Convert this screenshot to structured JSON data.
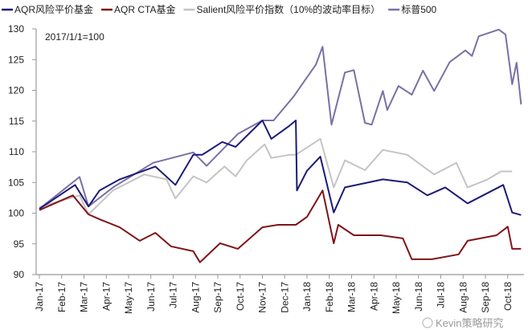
{
  "chart_data": {
    "type": "line",
    "title": "",
    "annotation": "2017/1/1=100",
    "xlabel": "",
    "ylabel": "",
    "ylim": [
      90,
      130
    ],
    "yticks": [
      90,
      95,
      100,
      105,
      110,
      115,
      120,
      125,
      130
    ],
    "x_unit": "months since Jan-17",
    "xticks": [
      "Jan-17",
      "Feb-17",
      "Mar-17",
      "Apr-17",
      "May-17",
      "Jun-17",
      "Jul-17",
      "Aug-17",
      "Sep-17",
      "Oct-17",
      "Nov-17",
      "Dec-17",
      "Jan-18",
      "Feb-18",
      "Mar-18",
      "Apr-18",
      "May-18",
      "Jun-18",
      "Jul-18",
      "Aug-18",
      "Sep-18",
      "Oct-18"
    ],
    "legend_position": "top",
    "grid": false,
    "series": [
      {
        "name": "AQR风险平价基金",
        "color": "#1b1b78",
        "points": [
          [
            0,
            100.7
          ],
          [
            1.6,
            104.6
          ],
          [
            2.2,
            101.1
          ],
          [
            2.7,
            103.7
          ],
          [
            3.6,
            105.5
          ],
          [
            5.2,
            107.6
          ],
          [
            6.1,
            104.6
          ],
          [
            6.9,
            109.5
          ],
          [
            7.3,
            109.5
          ],
          [
            8.2,
            111.6
          ],
          [
            8.8,
            110.8
          ],
          [
            10,
            115.1
          ],
          [
            10.4,
            112.1
          ],
          [
            11.2,
            114.2
          ],
          [
            11.5,
            115.1
          ],
          [
            11.55,
            103.7
          ],
          [
            12,
            106.9
          ],
          [
            12.6,
            109.2
          ],
          [
            13.2,
            100.1
          ],
          [
            13.7,
            104.2
          ],
          [
            15.4,
            105.5
          ],
          [
            16.5,
            105
          ],
          [
            17.4,
            102.9
          ],
          [
            18.2,
            104.2
          ],
          [
            19.2,
            101.6
          ],
          [
            20.8,
            104.6
          ],
          [
            21.2,
            100.1
          ],
          [
            21.6,
            99.7
          ]
        ]
      },
      {
        "name": "AQR CTA基金",
        "color": "#7f1518",
        "points": [
          [
            0,
            100.5
          ],
          [
            1.5,
            102.9
          ],
          [
            2.2,
            99.8
          ],
          [
            2.7,
            99
          ],
          [
            3.6,
            97.7
          ],
          [
            4.5,
            95.5
          ],
          [
            5.2,
            96.8
          ],
          [
            5.9,
            94.6
          ],
          [
            6.9,
            93.8
          ],
          [
            7.2,
            92
          ],
          [
            8.1,
            95.1
          ],
          [
            8.9,
            94.2
          ],
          [
            10,
            97.7
          ],
          [
            10.7,
            98.1
          ],
          [
            11.5,
            98.1
          ],
          [
            12,
            99.4
          ],
          [
            12.7,
            103.7
          ],
          [
            13.2,
            95.1
          ],
          [
            13.4,
            98.1
          ],
          [
            14.1,
            96.4
          ],
          [
            15.3,
            96.4
          ],
          [
            16.3,
            95.9
          ],
          [
            16.7,
            92.5
          ],
          [
            17.6,
            92.5
          ],
          [
            18.8,
            93.3
          ],
          [
            19.2,
            95.5
          ],
          [
            20.5,
            96.4
          ],
          [
            21,
            97.8
          ],
          [
            21.2,
            94.2
          ],
          [
            21.6,
            94.2
          ]
        ]
      },
      {
        "name": "Salient风险平价指数（10%的波动率目标）",
        "color": "#c4c4c4",
        "points": [
          [
            0,
            101
          ],
          [
            1.8,
            102.9
          ],
          [
            2.2,
            99.8
          ],
          [
            3.3,
            103.7
          ],
          [
            4.7,
            106.3
          ],
          [
            5.7,
            105.5
          ],
          [
            6.1,
            102.4
          ],
          [
            6.9,
            106
          ],
          [
            7.5,
            105
          ],
          [
            8.3,
            107.6
          ],
          [
            8.8,
            106
          ],
          [
            9.3,
            108.6
          ],
          [
            10.1,
            111.2
          ],
          [
            10.4,
            109
          ],
          [
            11.2,
            109.5
          ],
          [
            11.5,
            109.5
          ],
          [
            12.6,
            112.1
          ],
          [
            13.2,
            104.2
          ],
          [
            13.7,
            108.6
          ],
          [
            14.6,
            107
          ],
          [
            15.4,
            110.3
          ],
          [
            16.5,
            109.5
          ],
          [
            17.7,
            106.3
          ],
          [
            18.7,
            108.2
          ],
          [
            19.2,
            104.2
          ],
          [
            20.1,
            105.5
          ],
          [
            20.7,
            106.8
          ],
          [
            21.2,
            106.8
          ]
        ]
      },
      {
        "name": "标普500",
        "color": "#7b6fa6",
        "points": [
          [
            0,
            100.7
          ],
          [
            1.8,
            105.9
          ],
          [
            2.2,
            101.1
          ],
          [
            3.3,
            104.2
          ],
          [
            5.1,
            108.2
          ],
          [
            6.9,
            109.9
          ],
          [
            7.5,
            107.7
          ],
          [
            8.9,
            112.9
          ],
          [
            10,
            115.1
          ],
          [
            10.5,
            115.1
          ],
          [
            11.4,
            119
          ],
          [
            11.9,
            121.6
          ],
          [
            12.4,
            124.2
          ],
          [
            12.7,
            127.1
          ],
          [
            13.1,
            114.4
          ],
          [
            13.7,
            122.9
          ],
          [
            14.1,
            123.3
          ],
          [
            14.6,
            114.7
          ],
          [
            14.9,
            114.4
          ],
          [
            15.4,
            119.9
          ],
          [
            15.6,
            116.8
          ],
          [
            16.1,
            120.7
          ],
          [
            16.7,
            119.3
          ],
          [
            17.2,
            123.2
          ],
          [
            17.7,
            119.9
          ],
          [
            18.4,
            124.6
          ],
          [
            19.1,
            126.5
          ],
          [
            19.4,
            125.6
          ],
          [
            19.7,
            128.8
          ],
          [
            20.6,
            129.9
          ],
          [
            20.9,
            129.1
          ],
          [
            21.2,
            121
          ],
          [
            21.4,
            124.5
          ],
          [
            21.6,
            117.7
          ]
        ]
      }
    ]
  },
  "watermark": "Kevin策略研究"
}
